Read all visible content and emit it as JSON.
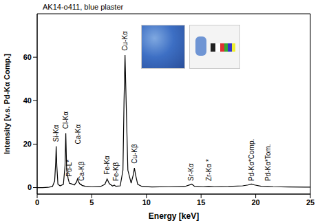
{
  "chart_data": {
    "type": "line",
    "title": "AK14-o411, blue plaster",
    "x_label": "Energy [keV]",
    "y_label": "Intensity [v.s. Pd-Kα Comp.]",
    "x": [
      0,
      0.5,
      1.0,
      1.4,
      1.6,
      1.7,
      1.74,
      1.8,
      1.9,
      2.1,
      2.4,
      2.55,
      2.62,
      2.7,
      2.84,
      2.95,
      3.1,
      3.4,
      3.6,
      3.69,
      3.8,
      3.95,
      4.01,
      4.1,
      4.4,
      5.0,
      5.8,
      6.2,
      6.4,
      6.6,
      6.9,
      7.06,
      7.2,
      7.6,
      7.85,
      7.95,
      8.04,
      8.15,
      8.3,
      8.6,
      8.8,
      8.9,
      9.0,
      9.2,
      9.6,
      10.5,
      12,
      13.5,
      14.0,
      14.15,
      14.4,
      15.2,
      15.7,
      16.2,
      17.5,
      18.8,
      19.3,
      19.6,
      19.9,
      20.5,
      21.1,
      21.6,
      23,
      24.5,
      25
    ],
    "values": [
      0,
      0,
      0.1,
      0.5,
      3,
      12,
      19,
      10,
      1.5,
      0.8,
      1.5,
      10,
      25,
      8,
      4,
      2,
      1.8,
      1.2,
      2.5,
      4,
      2.5,
      1.4,
      1.6,
      1,
      0.6,
      0.4,
      0.5,
      1.5,
      4,
      1.8,
      0.7,
      1.1,
      0.6,
      0.8,
      8,
      40,
      61,
      38,
      8,
      2,
      6,
      9,
      6,
      1.5,
      0.5,
      0.3,
      0.4,
      0.5,
      1.3,
      1.6,
      0.6,
      0.4,
      0.5,
      0.4,
      0.5,
      0.8,
      1.2,
      1.6,
      1.2,
      0.6,
      0.5,
      0.4,
      0.3,
      0.2,
      0.2
    ],
    "color": "#000000",
    "xlim": [
      0,
      25
    ],
    "xticks": [
      0,
      5,
      10,
      15,
      20,
      25
    ],
    "ylim": [
      -3,
      80
    ],
    "yticks": [
      0,
      20,
      40,
      60
    ],
    "grid": false,
    "annotations": [
      {
        "text": "Si-Kα",
        "x": 1.74,
        "y": 21
      },
      {
        "text": "Cl-Kα",
        "x": 2.62,
        "y": 27
      },
      {
        "text": "Pd-L*",
        "x": 2.95,
        "y": 5
      },
      {
        "text": "Ca-Kα",
        "x": 3.75,
        "y": 20
      },
      {
        "text": "Ca-Kβ",
        "x": 4.05,
        "y": 3
      },
      {
        "text": "Fe-Kα",
        "x": 6.4,
        "y": 6
      },
      {
        "text": "Fe-Kβ",
        "x": 7.2,
        "y": 3
      },
      {
        "text": "Cu-Kα",
        "x": 8.04,
        "y": 63
      },
      {
        "text": "Cu-Kβ",
        "x": 8.9,
        "y": 11
      },
      {
        "text": "Sr-Kα",
        "x": 14.1,
        "y": 3
      },
      {
        "text": "Zr-Kα *",
        "x": 15.7,
        "y": 3
      },
      {
        "text": "Pd-Kα*Comp.",
        "x": 19.6,
        "y": 3
      },
      {
        "text": "Pd-Kα*Tom.",
        "x": 21.1,
        "y": 3
      }
    ]
  }
}
